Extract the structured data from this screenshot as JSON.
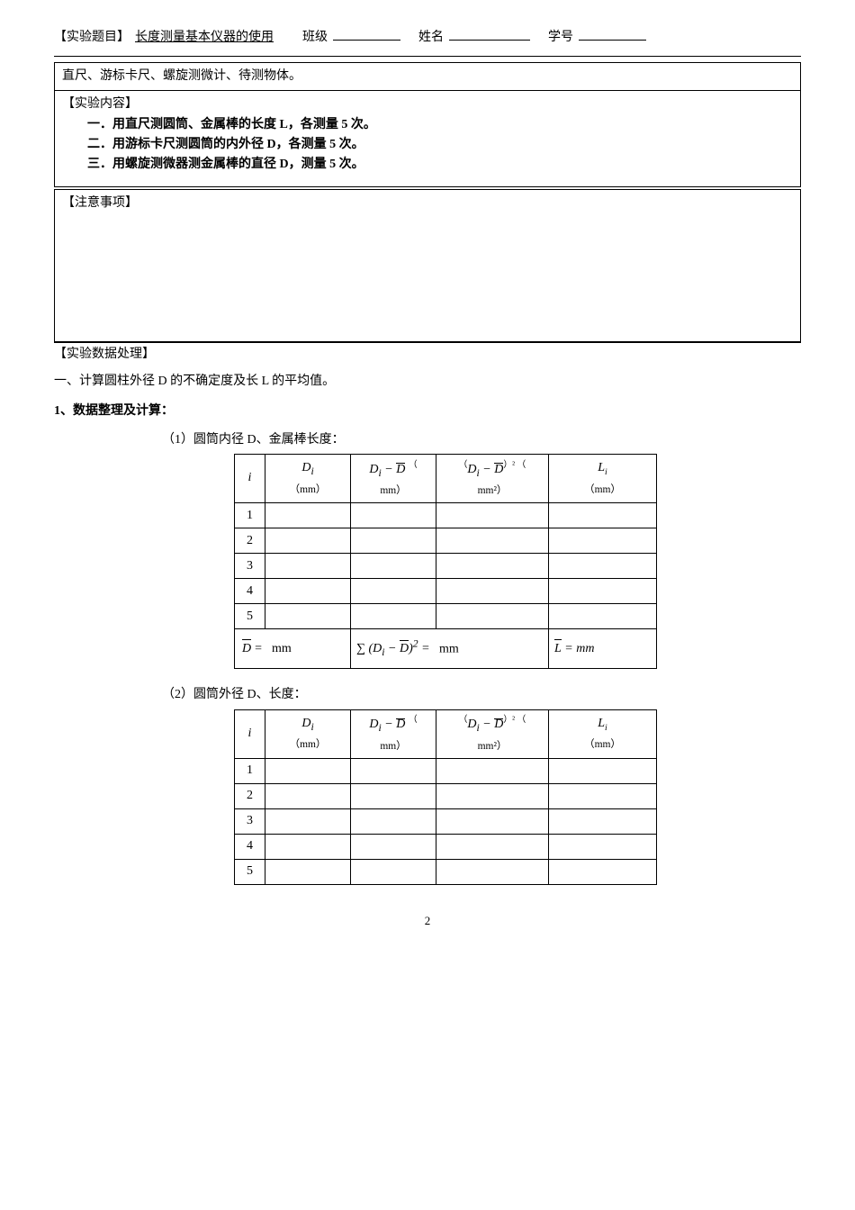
{
  "header": {
    "label_experiment": "【实验题目】",
    "title": "长度测量基本仪器的使用",
    "label_class": "班级",
    "label_name": "姓名",
    "label_id": "学号"
  },
  "equipment": "直尺、游标卡尺、螺旋测微计、待测物体。",
  "content": {
    "heading": "【实验内容】",
    "item1": "一．用直尺测圆筒、金属棒的长度 L，各测量 5 次。",
    "item2": "二．用游标卡尺测圆筒的内外径 D，各测量 5 次。",
    "item3": "三．用螺旋测微器测金属棒的直径 D，测量 5 次。"
  },
  "caution": {
    "heading": "【注意事项】"
  },
  "dataproc": {
    "heading": "【实验数据处理】",
    "line1": "一、计算圆柱外径 D 的不确定度及长 L 的平均值。",
    "step1": "1、数据整理及计算：",
    "cap1": "（1）圆筒内径 D、金属棒长度：",
    "cap2": "（2）圆筒外径 D、长度："
  },
  "table": {
    "i_label": "i",
    "Di_label_html": "D<sub>i</sub>",
    "diff_label_html": "D<sub>i</sub> − <span class='bar'>D</span>",
    "sq_label_html": "( D<sub>i</sub> − <span class='bar'>D</span> )<sup>2</sup>",
    "Li_label_html": "L<span class='sub'>i</span>",
    "unit_mm": "（mm）",
    "unit_mm_plain": "mm）",
    "unit_mm2": "mm²）",
    "open_paren": "（",
    "rows": [
      "1",
      "2",
      "3",
      "4",
      "5"
    ],
    "sum_Dbar": "D̄ =   mm",
    "sum_sq_html": "∑ (D<sub>i</sub> − <span class='bar'>D</span>)<sup>2</sup> =",
    "sum_sq_unit": "mm",
    "Lbar_html": "<span class='bar'>L</span> =   mm"
  },
  "pagenum": "2"
}
